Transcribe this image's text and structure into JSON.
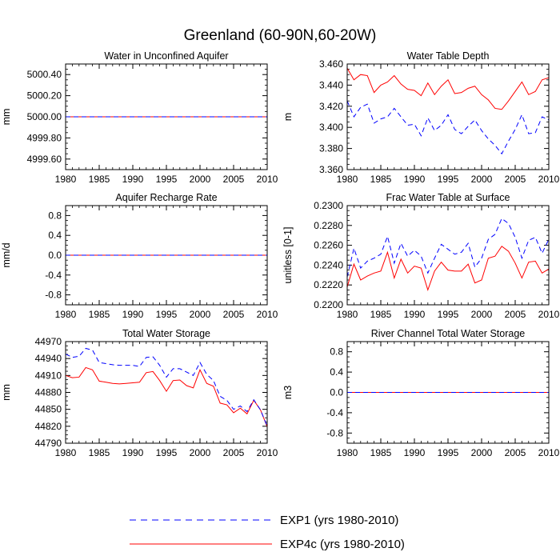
{
  "suptitle": "Greenland (60-90N,60-20W)",
  "colors": {
    "exp1": "#0000ff",
    "exp4c": "#ff0000",
    "axis": "#000000"
  },
  "legend": [
    {
      "key": "exp1",
      "label": "EXP1 (yrs 1980-2010)",
      "style": "dashed"
    },
    {
      "key": "exp4c",
      "label": "EXP4c (yrs 1980-2010)",
      "style": "solid"
    }
  ],
  "chart_data": [
    {
      "type": "line",
      "title": "Water in Unconfined Aquifer",
      "ylabel": "mm",
      "xlim": [
        1980,
        2010
      ],
      "xticks": [
        1980,
        1985,
        1990,
        1995,
        2000,
        2005,
        2010
      ],
      "ylim": [
        4999.5,
        5000.5
      ],
      "yticks": [
        4999.6,
        4999.8,
        5000.0,
        5000.2,
        5000.4
      ],
      "ytick_labels": [
        "4999.60",
        "4999.80",
        "5000.00",
        "5000.20",
        "5000.40"
      ],
      "x": [
        1980,
        2010
      ],
      "series": [
        {
          "name": "EXP1",
          "values": [
            5000.0,
            5000.0
          ]
        },
        {
          "name": "EXP4c",
          "values": [
            5000.0,
            5000.0
          ]
        }
      ]
    },
    {
      "type": "line",
      "title": "Water Table Depth",
      "ylabel": "m",
      "xlim": [
        1980,
        2010
      ],
      "xticks": [
        1980,
        1985,
        1990,
        1995,
        2000,
        2005,
        2010
      ],
      "ylim": [
        3.36,
        3.46
      ],
      "yticks": [
        3.36,
        3.38,
        3.4,
        3.42,
        3.44,
        3.46
      ],
      "ytick_labels": [
        "3.360",
        "3.380",
        "3.400",
        "3.420",
        "3.440",
        "3.460"
      ],
      "x": [
        1980,
        1981,
        1982,
        1983,
        1984,
        1985,
        1986,
        1987,
        1988,
        1989,
        1990,
        1991,
        1992,
        1993,
        1994,
        1995,
        1996,
        1997,
        1998,
        1999,
        2000,
        2001,
        2002,
        2003,
        2004,
        2005,
        2006,
        2007,
        2008,
        2009,
        2010
      ],
      "series": [
        {
          "name": "EXP1",
          "values": [
            3.425,
            3.41,
            3.419,
            3.422,
            3.404,
            3.408,
            3.41,
            3.418,
            3.41,
            3.402,
            3.403,
            3.392,
            3.409,
            3.397,
            3.402,
            3.412,
            3.398,
            3.394,
            3.401,
            3.407,
            3.397,
            3.389,
            3.383,
            3.375,
            3.387,
            3.398,
            3.412,
            3.394,
            3.395,
            3.41,
            3.407
          ]
        },
        {
          "name": "EXP4c",
          "values": [
            3.456,
            3.445,
            3.45,
            3.449,
            3.433,
            3.44,
            3.443,
            3.449,
            3.441,
            3.436,
            3.435,
            3.43,
            3.442,
            3.431,
            3.439,
            3.445,
            3.432,
            3.433,
            3.437,
            3.439,
            3.431,
            3.426,
            3.418,
            3.417,
            3.425,
            3.434,
            3.443,
            3.431,
            3.434,
            3.445,
            3.447
          ]
        }
      ]
    },
    {
      "type": "line",
      "title": "Aquifer Recharge Rate",
      "ylabel": "mm/d",
      "xlim": [
        1980,
        2010
      ],
      "xticks": [
        1980,
        1985,
        1990,
        1995,
        2000,
        2005,
        2010
      ],
      "ylim": [
        -1.0,
        1.0
      ],
      "yticks": [
        -0.8,
        -0.4,
        0.0,
        0.4,
        0.8
      ],
      "ytick_labels": [
        "-0.8",
        "-0.4",
        "0.0",
        "0.4",
        "0.8"
      ],
      "x": [
        1980,
        2010
      ],
      "series": [
        {
          "name": "EXP1",
          "values": [
            0.0,
            0.0
          ]
        },
        {
          "name": "EXP4c",
          "values": [
            0.0,
            0.0
          ]
        }
      ]
    },
    {
      "type": "line",
      "title": "Frac Water Table at Surface",
      "ylabel": "unitless [0-1]",
      "xlim": [
        1980,
        2010
      ],
      "xticks": [
        1980,
        1985,
        1990,
        1995,
        2000,
        2005,
        2010
      ],
      "ylim": [
        0.22,
        0.23
      ],
      "yticks": [
        0.22,
        0.222,
        0.224,
        0.226,
        0.228,
        0.23
      ],
      "ytick_labels": [
        "0.2200",
        "0.2220",
        "0.2240",
        "0.2260",
        "0.2280",
        "0.2300"
      ],
      "x": [
        1980,
        1981,
        1982,
        1983,
        1984,
        1985,
        1986,
        1987,
        1988,
        1989,
        1990,
        1991,
        1992,
        1993,
        1994,
        1995,
        1996,
        1997,
        1998,
        1999,
        2000,
        2001,
        2002,
        2003,
        2004,
        2005,
        2006,
        2007,
        2008,
        2009,
        2010
      ],
      "series": [
        {
          "name": "EXP1",
          "values": [
            0.2228,
            0.2257,
            0.2237,
            0.2244,
            0.2247,
            0.2251,
            0.2269,
            0.2242,
            0.2262,
            0.2249,
            0.2255,
            0.2249,
            0.2232,
            0.2247,
            0.2261,
            0.2256,
            0.2251,
            0.2253,
            0.2262,
            0.2238,
            0.2247,
            0.2266,
            0.2271,
            0.2287,
            0.2282,
            0.2268,
            0.2247,
            0.2265,
            0.2268,
            0.2252,
            0.2266
          ]
        },
        {
          "name": "EXP4c",
          "values": [
            0.2218,
            0.2241,
            0.2225,
            0.2229,
            0.2232,
            0.2234,
            0.2253,
            0.2227,
            0.2246,
            0.2232,
            0.2239,
            0.2237,
            0.2215,
            0.2234,
            0.2243,
            0.2235,
            0.2234,
            0.2234,
            0.2241,
            0.2222,
            0.2225,
            0.2247,
            0.2249,
            0.2259,
            0.2254,
            0.2242,
            0.2227,
            0.2243,
            0.2244,
            0.2232,
            0.2236
          ]
        }
      ]
    },
    {
      "type": "line",
      "title": "Total Water Storage",
      "ylabel": "mm",
      "xlim": [
        1980,
        2010
      ],
      "xticks": [
        1980,
        1985,
        1990,
        1995,
        2000,
        2005,
        2010
      ],
      "ylim": [
        44790,
        44970
      ],
      "yticks": [
        44790,
        44820,
        44850,
        44880,
        44910,
        44940,
        44970
      ],
      "ytick_labels": [
        "44790",
        "44820",
        "44850",
        "44880",
        "44910",
        "44940",
        "44970"
      ],
      "x": [
        1980,
        1981,
        1982,
        1983,
        1984,
        1985,
        1986,
        1987,
        1988,
        1989,
        1990,
        1991,
        1992,
        1993,
        1994,
        1995,
        1996,
        1997,
        1998,
        1999,
        2000,
        2001,
        2002,
        2003,
        2004,
        2005,
        2006,
        2007,
        2008,
        2009,
        2010
      ],
      "series": [
        {
          "name": "EXP1",
          "values": [
            44948,
            44942,
            44944,
            44958,
            44955,
            44933,
            44931,
            44929,
            44928,
            44928,
            44928,
            44926,
            44942,
            44943,
            44928,
            44907,
            44922,
            44922,
            44916,
            44910,
            44933,
            44912,
            44901,
            44873,
            44866,
            44850,
            44856,
            44846,
            44867,
            44849,
            44820
          ]
        },
        {
          "name": "EXP4c",
          "values": [
            44910,
            44906,
            44907,
            44924,
            44920,
            44900,
            44898,
            44896,
            44895,
            44896,
            44897,
            44898,
            44915,
            44917,
            44901,
            44882,
            44901,
            44902,
            44892,
            44888,
            44920,
            44896,
            44891,
            44861,
            44858,
            44844,
            44852,
            44842,
            44866,
            44849,
            44819
          ]
        }
      ]
    },
    {
      "type": "line",
      "title": "River Channel Total Water Storage",
      "ylabel": "m3",
      "xlim": [
        1980,
        2010
      ],
      "xticks": [
        1980,
        1985,
        1990,
        1995,
        2000,
        2005,
        2010
      ],
      "ylim": [
        -1.0,
        1.0
      ],
      "yticks": [
        -0.8,
        -0.4,
        0.0,
        0.4,
        0.8
      ],
      "ytick_labels": [
        "-0.8",
        "-0.4",
        "0.0",
        "0.4",
        "0.8"
      ],
      "x": [
        1980,
        2010
      ],
      "series": [
        {
          "name": "EXP1",
          "values": [
            0.0,
            0.0
          ]
        },
        {
          "name": "EXP4c",
          "values": [
            0.0,
            0.0
          ]
        }
      ]
    }
  ]
}
